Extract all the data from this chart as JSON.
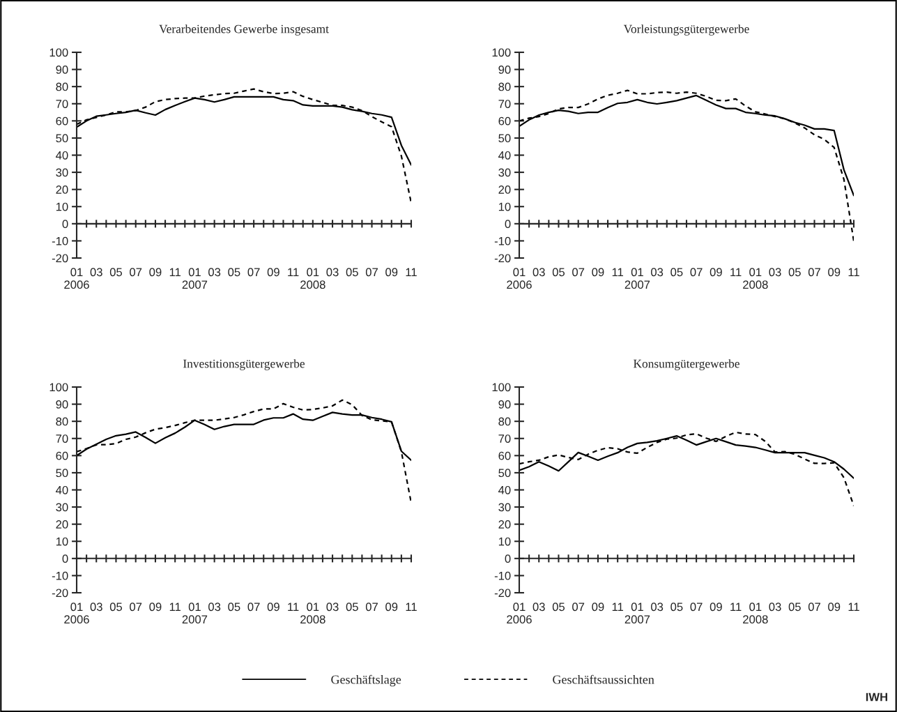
{
  "chart_data": [
    {
      "type": "line",
      "title": "Verarbeitendes Gewerbe insgesamt",
      "categories": [
        "01\n2006",
        null,
        "03",
        null,
        "05",
        null,
        "07",
        null,
        "09",
        null,
        "11",
        null,
        "01\n2007",
        null,
        "03",
        null,
        "05",
        null,
        "07",
        null,
        "09",
        null,
        "11",
        null,
        "01\n2008",
        null,
        "03",
        null,
        "05",
        null,
        "07",
        null,
        "09",
        null,
        "11"
      ],
      "series": [
        {
          "name": "Geschäftslage",
          "color": "#000000",
          "line_style": "solid",
          "values": [
            56.3,
            60,
            62.7,
            63.5,
            64.3,
            65,
            66.2,
            64.7,
            63.4,
            66.6,
            69,
            71.2,
            73.3,
            72.4,
            71,
            72.4,
            74,
            74,
            74,
            74,
            74,
            72.4,
            71.8,
            69.3,
            68.7,
            68.7,
            68.7,
            68,
            66.5,
            65.6,
            64.3,
            63.5,
            62.1,
            45.7,
            34.3
          ]
        },
        {
          "name": "Geschäftsaussichten",
          "color": "#000000",
          "line_style": "dashed",
          "values": [
            58,
            60.6,
            62,
            63.5,
            65.3,
            65.3,
            66,
            68,
            71.2,
            72.4,
            73,
            73.3,
            73.3,
            74.5,
            75.2,
            75.9,
            76.1,
            77.4,
            78.6,
            77,
            75.9,
            76.1,
            77,
            74.3,
            72.4,
            70.8,
            69,
            69,
            68,
            66,
            62.5,
            59.4,
            56.6,
            39.5,
            12.2
          ]
        }
      ],
      "ylim": [
        -20,
        100
      ],
      "yticks": [
        -20,
        -10,
        0,
        10,
        20,
        30,
        40,
        50,
        60,
        70,
        80,
        90,
        100
      ],
      "legend": "bottom"
    },
    {
      "type": "line",
      "title": "Vorleistungsgütergewerbe",
      "categories": [
        "01\n2006",
        null,
        "03",
        null,
        "05",
        null,
        "07",
        null,
        "09",
        null,
        "11",
        null,
        "01\n2007",
        null,
        "03",
        null,
        "05",
        null,
        "07",
        null,
        "09",
        null,
        "11",
        null,
        "01\n2008",
        null,
        "03",
        null,
        "05",
        null,
        "07",
        null,
        "09",
        null,
        "11"
      ],
      "series": [
        {
          "color": "#000000",
          "line_style": "solid",
          "values": [
            56.9,
            60.6,
            63.4,
            65,
            66.2,
            65.6,
            64.3,
            65,
            65,
            67.8,
            70.2,
            70.8,
            72.4,
            70.8,
            69.9,
            70.8,
            71.8,
            73.3,
            74.8,
            72,
            69.3,
            67.2,
            67.2,
            65,
            64.3,
            63.4,
            62.9,
            61.2,
            59.1,
            57.5,
            55.3,
            55.3,
            54.4,
            31.4,
            16.5
          ]
        },
        {
          "color": "#000000",
          "line_style": "dashed",
          "values": [
            60,
            61.6,
            62.5,
            64.3,
            67,
            67.8,
            67.8,
            69.9,
            72.8,
            74.9,
            76.1,
            77.8,
            75.8,
            75.8,
            76.5,
            76.8,
            76.1,
            76.8,
            76.1,
            74.3,
            72,
            71.8,
            72.8,
            68.7,
            65.3,
            64,
            62.5,
            61.2,
            58.8,
            55.9,
            51.9,
            49.2,
            44.5,
            25.8,
            -10.2
          ]
        }
      ],
      "ylim": [
        -20,
        100
      ],
      "yticks": [
        -20,
        -10,
        0,
        10,
        20,
        30,
        40,
        50,
        60,
        70,
        80,
        90,
        100
      ]
    },
    {
      "type": "line",
      "title": "Investitionsgütergewerbe",
      "categories": [
        "01\n2006",
        null,
        "03",
        null,
        "05",
        null,
        "07",
        null,
        "09",
        null,
        "11",
        null,
        "01\n2007",
        null,
        "03",
        null,
        "05",
        null,
        "07",
        null,
        "09",
        null,
        "11",
        null,
        "01\n2008",
        null,
        "03",
        null,
        "05",
        null,
        "07",
        null,
        "09",
        null,
        "11"
      ],
      "series": [
        {
          "color": "#000000",
          "line_style": "solid",
          "values": [
            60,
            63.8,
            66.6,
            69.5,
            71.6,
            72.5,
            73.8,
            70.6,
            67.2,
            70.4,
            73.1,
            76.6,
            80.6,
            78.1,
            75.3,
            77,
            78.2,
            78.2,
            78.2,
            80.7,
            82,
            82,
            84.3,
            81.2,
            80.6,
            82.9,
            85.2,
            84.3,
            83.7,
            83.7,
            82.2,
            81.2,
            79.7,
            62.6,
            57.3
          ]
        },
        {
          "color": "#000000",
          "line_style": "dashed",
          "values": [
            62.3,
            64.1,
            66.3,
            66.4,
            67,
            69.5,
            70.8,
            73.3,
            75.4,
            76.3,
            77.6,
            79.2,
            80.6,
            80.6,
            80.6,
            81.4,
            82.2,
            83.8,
            85.7,
            87.2,
            87.2,
            90.3,
            88.2,
            86.6,
            86.9,
            87.8,
            89,
            92.4,
            89.7,
            83.4,
            80.9,
            80.3,
            79.7,
            62.3,
            32.4
          ]
        }
      ],
      "ylim": [
        -20,
        100
      ],
      "yticks": [
        -20,
        -10,
        0,
        10,
        20,
        30,
        40,
        50,
        60,
        70,
        80,
        90,
        100
      ]
    },
    {
      "type": "line",
      "title": "Konsumgütergewerbe",
      "categories": [
        "01\n2006",
        null,
        "03",
        null,
        "05",
        null,
        "07",
        null,
        "09",
        null,
        "11",
        null,
        "01\n2007",
        null,
        "03",
        null,
        "05",
        null,
        "07",
        null,
        "09",
        null,
        "11",
        null,
        "01\n2008",
        null,
        "03",
        null,
        "05",
        null,
        "07",
        null,
        "09",
        null,
        "11"
      ],
      "series": [
        {
          "color": "#000000",
          "line_style": "solid",
          "values": [
            51.4,
            53.5,
            56.4,
            53.9,
            51.1,
            56.4,
            61.8,
            59.6,
            57.3,
            59.6,
            61.7,
            64.8,
            67.1,
            67.7,
            68.6,
            70,
            71.5,
            69,
            66.2,
            68.1,
            70,
            68.1,
            66.2,
            65.6,
            64.8,
            63.3,
            61.7,
            61.7,
            61.7,
            61.7,
            60.2,
            58.7,
            56.4,
            52.1,
            46.8
          ]
        },
        {
          "color": "#000000",
          "line_style": "dashed",
          "values": [
            55.2,
            56.4,
            57.3,
            59.3,
            60.4,
            58.9,
            57.7,
            60.8,
            63.1,
            64.6,
            64,
            62.1,
            61.4,
            64.8,
            67.7,
            69.6,
            70.2,
            72.1,
            72.7,
            70.2,
            68.3,
            71.2,
            73.6,
            72.6,
            72.3,
            68.3,
            62.1,
            62.3,
            60.8,
            58,
            55.5,
            55.4,
            55.8,
            47.1,
            30.7
          ]
        }
      ],
      "ylim": [
        -20,
        100
      ],
      "yticks": [
        -20,
        -10,
        0,
        10,
        20,
        30,
        40,
        50,
        60,
        70,
        80,
        90,
        100
      ],
      "annotations": [
        "IWH"
      ]
    }
  ]
}
